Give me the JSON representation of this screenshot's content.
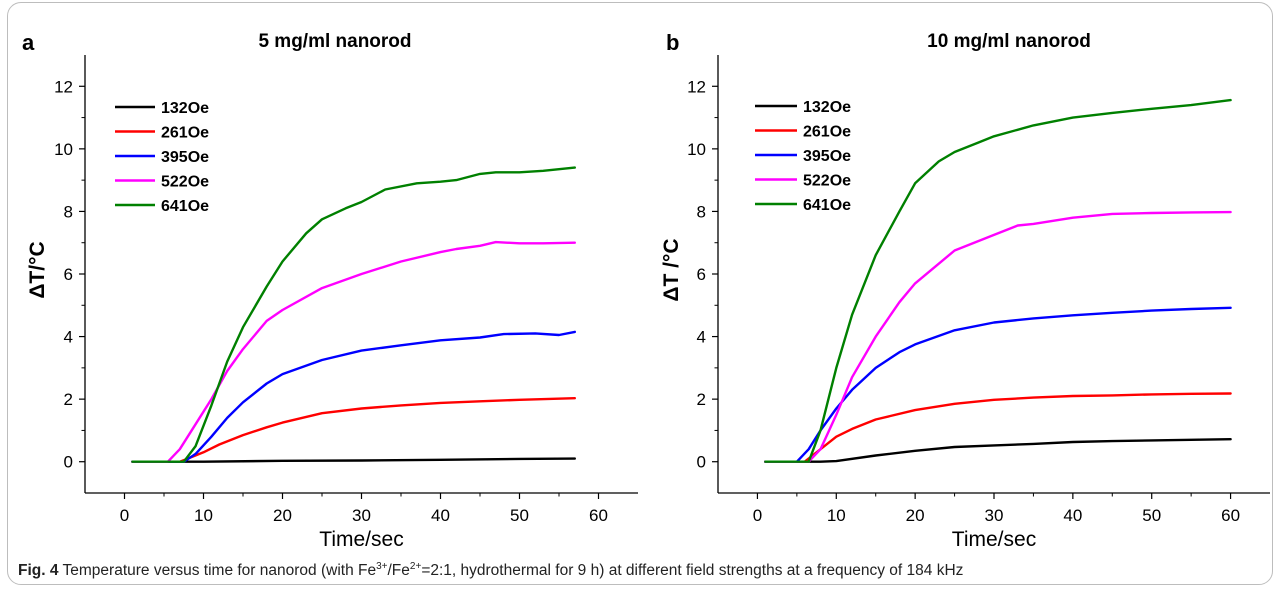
{
  "caption": {
    "label": "Fig. 4",
    "text_1": " Temperature versus time for nanorod (with Fe",
    "sup_1": "3+",
    "text_2": "/Fe",
    "sup_2": "2+",
    "text_3": "=2:1, hydrothermal for 9 h) at different field strengths at a frequency of 184 kHz"
  },
  "chart_data": [
    {
      "type": "line",
      "panel_letter": "a",
      "title": "5 mg/ml nanorod",
      "xlabel": "Time/sec",
      "ylabel": "ΔT/°C",
      "xlim": [
        -5,
        65
      ],
      "ylim": [
        -1,
        13
      ],
      "xticks": [
        0,
        10,
        20,
        30,
        40,
        50,
        60
      ],
      "yticks": [
        0,
        2,
        4,
        6,
        8,
        10,
        12
      ],
      "grid": false,
      "legend_position": "top-left",
      "series": [
        {
          "name": "132Oe",
          "color": "#000000",
          "points": [
            [
              1,
              0
            ],
            [
              8,
              0
            ],
            [
              10,
              0
            ],
            [
              20,
              0.03
            ],
            [
              30,
              0.04
            ],
            [
              40,
              0.06
            ],
            [
              50,
              0.09
            ],
            [
              57,
              0.1
            ]
          ]
        },
        {
          "name": "261Oe",
          "color": "#ff0000",
          "points": [
            [
              1,
              0
            ],
            [
              7,
              0
            ],
            [
              8,
              0.1
            ],
            [
              10,
              0.3
            ],
            [
              12,
              0.55
            ],
            [
              15,
              0.85
            ],
            [
              18,
              1.1
            ],
            [
              20,
              1.25
            ],
            [
              25,
              1.55
            ],
            [
              30,
              1.7
            ],
            [
              35,
              1.8
            ],
            [
              40,
              1.88
            ],
            [
              45,
              1.93
            ],
            [
              50,
              1.98
            ],
            [
              57,
              2.03
            ]
          ]
        },
        {
          "name": "395Oe",
          "color": "#0000ff",
          "points": [
            [
              1,
              0
            ],
            [
              7.5,
              0
            ],
            [
              9,
              0.25
            ],
            [
              11,
              0.8
            ],
            [
              13,
              1.4
            ],
            [
              15,
              1.9
            ],
            [
              18,
              2.5
            ],
            [
              20,
              2.8
            ],
            [
              25,
              3.25
            ],
            [
              30,
              3.55
            ],
            [
              35,
              3.72
            ],
            [
              40,
              3.88
            ],
            [
              45,
              3.97
            ],
            [
              48,
              4.08
            ],
            [
              52,
              4.1
            ],
            [
              55,
              4.05
            ],
            [
              57,
              4.15
            ]
          ]
        },
        {
          "name": "522Oe",
          "color": "#ff00ff",
          "points": [
            [
              1,
              0
            ],
            [
              5.5,
              0
            ],
            [
              7,
              0.4
            ],
            [
              9,
              1.2
            ],
            [
              11,
              2.0
            ],
            [
              13,
              2.9
            ],
            [
              15,
              3.6
            ],
            [
              18,
              4.5
            ],
            [
              20,
              4.85
            ],
            [
              25,
              5.55
            ],
            [
              30,
              6.0
            ],
            [
              35,
              6.4
            ],
            [
              40,
              6.7
            ],
            [
              42,
              6.8
            ],
            [
              45,
              6.9
            ],
            [
              47,
              7.02
            ],
            [
              50,
              6.98
            ],
            [
              53,
              6.98
            ],
            [
              57,
              7.0
            ]
          ]
        },
        {
          "name": "641Oe",
          "color": "#008000",
          "points": [
            [
              1,
              0
            ],
            [
              7.5,
              0
            ],
            [
              9,
              0.5
            ],
            [
              11,
              1.8
            ],
            [
              13,
              3.2
            ],
            [
              15,
              4.3
            ],
            [
              18,
              5.6
            ],
            [
              20,
              6.4
            ],
            [
              23,
              7.3
            ],
            [
              25,
              7.75
            ],
            [
              28,
              8.1
            ],
            [
              30,
              8.3
            ],
            [
              33,
              8.7
            ],
            [
              37,
              8.9
            ],
            [
              40,
              8.95
            ],
            [
              42,
              9.0
            ],
            [
              45,
              9.2
            ],
            [
              47,
              9.25
            ],
            [
              50,
              9.25
            ],
            [
              53,
              9.3
            ],
            [
              57,
              9.4
            ]
          ]
        }
      ]
    },
    {
      "type": "line",
      "panel_letter": "b",
      "title": "10 mg/ml nanorod",
      "xlabel": "Time/sec",
      "ylabel": "ΔT /°C",
      "xlim": [
        -5,
        65
      ],
      "ylim": [
        -1,
        13
      ],
      "xticks": [
        0,
        10,
        20,
        30,
        40,
        50,
        60
      ],
      "yticks": [
        0,
        2,
        4,
        6,
        8,
        10,
        12
      ],
      "grid": false,
      "legend_position": "top-left",
      "series": [
        {
          "name": "132Oe",
          "color": "#000000",
          "points": [
            [
              1,
              0
            ],
            [
              8,
              0
            ],
            [
              10,
              0.02
            ],
            [
              15,
              0.2
            ],
            [
              20,
              0.35
            ],
            [
              25,
              0.47
            ],
            [
              30,
              0.52
            ],
            [
              35,
              0.57
            ],
            [
              40,
              0.63
            ],
            [
              45,
              0.66
            ],
            [
              50,
              0.68
            ],
            [
              55,
              0.7
            ],
            [
              60,
              0.72
            ]
          ]
        },
        {
          "name": "261Oe",
          "color": "#ff0000",
          "points": [
            [
              1,
              0
            ],
            [
              6,
              0
            ],
            [
              8,
              0.4
            ],
            [
              10,
              0.8
            ],
            [
              12,
              1.05
            ],
            [
              15,
              1.35
            ],
            [
              20,
              1.65
            ],
            [
              25,
              1.85
            ],
            [
              30,
              1.98
            ],
            [
              35,
              2.05
            ],
            [
              40,
              2.1
            ],
            [
              45,
              2.12
            ],
            [
              50,
              2.15
            ],
            [
              55,
              2.17
            ],
            [
              60,
              2.18
            ]
          ]
        },
        {
          "name": "395Oe",
          "color": "#0000ff",
          "points": [
            [
              1,
              0
            ],
            [
              5,
              0
            ],
            [
              6.5,
              0.4
            ],
            [
              8,
              1.0
            ],
            [
              10,
              1.7
            ],
            [
              12,
              2.3
            ],
            [
              15,
              3.0
            ],
            [
              18,
              3.5
            ],
            [
              20,
              3.75
            ],
            [
              25,
              4.2
            ],
            [
              30,
              4.45
            ],
            [
              35,
              4.58
            ],
            [
              40,
              4.68
            ],
            [
              45,
              4.76
            ],
            [
              50,
              4.83
            ],
            [
              55,
              4.88
            ],
            [
              60,
              4.92
            ]
          ]
        },
        {
          "name": "522Oe",
          "color": "#ff00ff",
          "points": [
            [
              1,
              0
            ],
            [
              6.5,
              0
            ],
            [
              8,
              0.4
            ],
            [
              10,
              1.5
            ],
            [
              12,
              2.7
            ],
            [
              15,
              4.0
            ],
            [
              18,
              5.1
            ],
            [
              20,
              5.7
            ],
            [
              25,
              6.75
            ],
            [
              30,
              7.25
            ],
            [
              33,
              7.55
            ],
            [
              35,
              7.6
            ],
            [
              40,
              7.8
            ],
            [
              45,
              7.92
            ],
            [
              50,
              7.95
            ],
            [
              55,
              7.97
            ],
            [
              60,
              7.98
            ]
          ]
        },
        {
          "name": "641Oe",
          "color": "#008000",
          "points": [
            [
              1,
              0
            ],
            [
              6.5,
              0
            ],
            [
              8,
              1.0
            ],
            [
              10,
              3.0
            ],
            [
              12,
              4.7
            ],
            [
              15,
              6.6
            ],
            [
              18,
              8.0
            ],
            [
              20,
              8.9
            ],
            [
              23,
              9.6
            ],
            [
              25,
              9.9
            ],
            [
              28,
              10.2
            ],
            [
              30,
              10.4
            ],
            [
              35,
              10.75
            ],
            [
              40,
              11.0
            ],
            [
              45,
              11.15
            ],
            [
              50,
              11.28
            ],
            [
              55,
              11.4
            ],
            [
              60,
              11.56
            ]
          ]
        }
      ]
    }
  ]
}
